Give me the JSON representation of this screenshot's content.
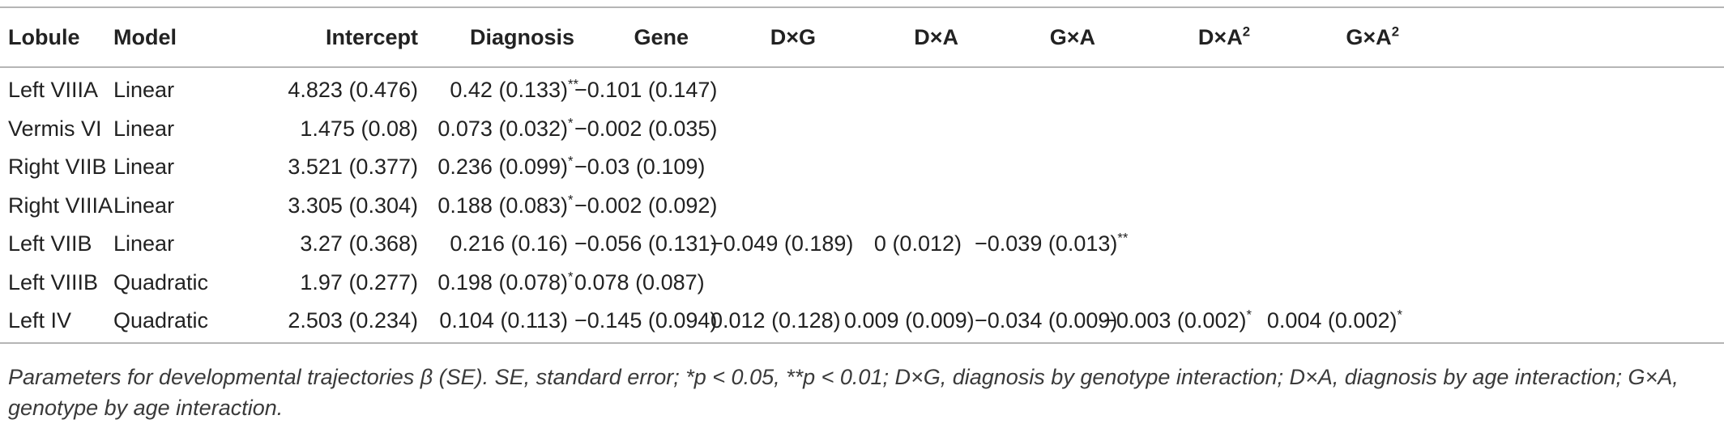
{
  "table": {
    "headers": {
      "lobule": "Lobule",
      "model": "Model",
      "intercept": "Intercept",
      "diagnosis": "Diagnosis",
      "gene": "Gene",
      "dxg": "D×G",
      "dxa": "D×A",
      "gxa": "G×A",
      "dxa2_base": "D×A",
      "dxa2_sup": "2",
      "gxa2_base": "G×A",
      "gxa2_sup": "2"
    },
    "rows": [
      {
        "lobule": "Left VIIIA",
        "model": "Linear",
        "intercept": "4.823 (0.476)",
        "diagnosis": "0.42 (0.133)",
        "diagnosis_sig": "**",
        "gene": "−0.101 (0.147)",
        "dxg": "",
        "dxa": "",
        "gxa": "",
        "gxa_sig": "",
        "dxa2": "",
        "dxa2_sig": "",
        "gxa2": "",
        "gxa2_sig": ""
      },
      {
        "lobule": "Vermis VI",
        "model": "Linear",
        "intercept": "1.475 (0.08)",
        "diagnosis": "0.073 (0.032)",
        "diagnosis_sig": "*",
        "gene": "−0.002 (0.035)",
        "dxg": "",
        "dxa": "",
        "gxa": "",
        "gxa_sig": "",
        "dxa2": "",
        "dxa2_sig": "",
        "gxa2": "",
        "gxa2_sig": ""
      },
      {
        "lobule": "Right VIIB",
        "model": "Linear",
        "intercept": "3.521 (0.377)",
        "diagnosis": "0.236 (0.099)",
        "diagnosis_sig": "*",
        "gene": "−0.03 (0.109)",
        "dxg": "",
        "dxa": "",
        "gxa": "",
        "gxa_sig": "",
        "dxa2": "",
        "dxa2_sig": "",
        "gxa2": "",
        "gxa2_sig": ""
      },
      {
        "lobule": "Right VIIIA",
        "model": "Linear",
        "intercept": "3.305 (0.304)",
        "diagnosis": "0.188 (0.083)",
        "diagnosis_sig": "*",
        "gene": "−0.002 (0.092)",
        "dxg": "",
        "dxa": "",
        "gxa": "",
        "gxa_sig": "",
        "dxa2": "",
        "dxa2_sig": "",
        "gxa2": "",
        "gxa2_sig": ""
      },
      {
        "lobule": "Left VIIB",
        "model": "Linear",
        "intercept": "3.27 (0.368)",
        "diagnosis": "0.216 (0.16)",
        "diagnosis_sig": "",
        "gene": "−0.056 (0.131)",
        "dxg": "−0.049 (0.189)",
        "dxa": "0 (0.012)",
        "gxa": "−0.039 (0.013)",
        "gxa_sig": "**",
        "dxa2": "",
        "dxa2_sig": "",
        "gxa2": "",
        "gxa2_sig": ""
      },
      {
        "lobule": "Left VIIIB",
        "model": "Quadratic",
        "intercept": "1.97 (0.277)",
        "diagnosis": "0.198 (0.078)",
        "diagnosis_sig": "*",
        "gene": "0.078 (0.087)",
        "dxg": "",
        "dxa": "",
        "gxa": "",
        "gxa_sig": "",
        "dxa2": "",
        "dxa2_sig": "",
        "gxa2": "",
        "gxa2_sig": ""
      },
      {
        "lobule": "Left IV",
        "model": "Quadratic",
        "intercept": "2.503 (0.234)",
        "diagnosis": "0.104 (0.113)",
        "diagnosis_sig": "",
        "gene": "−0.145 (0.094)",
        "dxg": "0.012 (0.128)",
        "dxa": "0.009 (0.009)",
        "gxa": "−0.034 (0.009)",
        "gxa_sig": "",
        "dxa2": "−0.003 (0.002)",
        "dxa2_sig": "*",
        "gxa2": "0.004 (0.002)",
        "gxa2_sig": "*"
      }
    ]
  },
  "caption": {
    "text": "Parameters for developmental trajectories β (SE). SE, standard error; *p < 0.05, **p < 0.01; D×G, diagnosis by genotype interaction; D×A, diagnosis by age interaction; G×A, genotype by age interaction."
  }
}
